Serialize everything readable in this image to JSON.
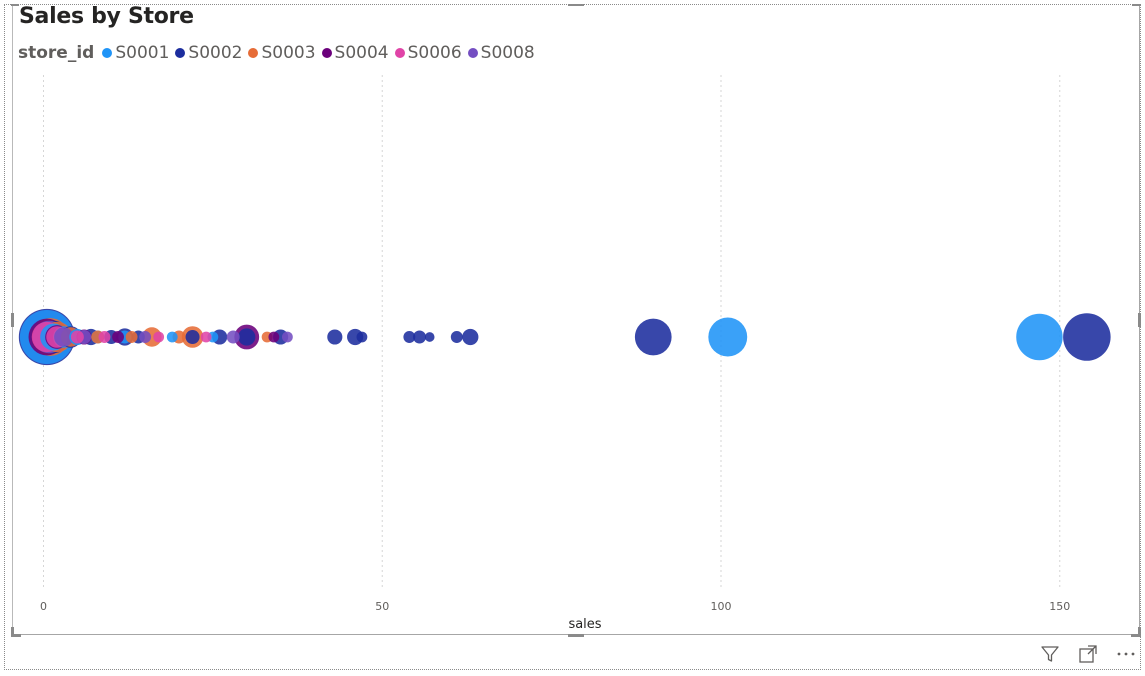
{
  "title": "Sales by Store",
  "legend": {
    "title": "store_id",
    "items": [
      {
        "label": "S0001",
        "color": "#1f94f7"
      },
      {
        "label": "S0002",
        "color": "#1c2d9e"
      },
      {
        "label": "S0003",
        "color": "#e66c37"
      },
      {
        "label": "S0004",
        "color": "#6b007b"
      },
      {
        "label": "S0006",
        "color": "#e044a7"
      },
      {
        "label": "S0008",
        "color": "#744ec2"
      }
    ]
  },
  "toolbar": {
    "filter_icon": "filter-icon",
    "focus_icon": "focus-mode-icon",
    "more_icon": "more-options-icon"
  },
  "chart_data": {
    "type": "scatter",
    "title": "Sales by Store",
    "xlabel": "sales",
    "ylabel": "",
    "xlim": [
      -0.5,
      162
    ],
    "xticks": [
      0,
      50,
      100,
      150
    ],
    "grid": true,
    "legend_position": "top-left",
    "series": [
      {
        "name": "S0001",
        "color": "#1f94f7",
        "points": [
          [
            0.5,
            5
          ],
          [
            1.5,
            2.5
          ],
          [
            3,
            2
          ],
          [
            5,
            1.5
          ],
          [
            8,
            1.2
          ],
          [
            12,
            1.2
          ],
          [
            19,
            1
          ],
          [
            25,
            1
          ],
          [
            101,
            3.6
          ],
          [
            147,
            4.3
          ]
        ]
      },
      {
        "name": "S0002",
        "color": "#1c2d9e",
        "points": [
          [
            0.5,
            5.2
          ],
          [
            1.5,
            3
          ],
          [
            4,
            2
          ],
          [
            7,
            1.5
          ],
          [
            10,
            1.3
          ],
          [
            12,
            1.6
          ],
          [
            14,
            1.2
          ],
          [
            22,
            1.3
          ],
          [
            26,
            1.4
          ],
          [
            30,
            1.6
          ],
          [
            35,
            1.4
          ],
          [
            43,
            1.4
          ],
          [
            46,
            1.5
          ],
          [
            47,
            1
          ],
          [
            54,
            1.1
          ],
          [
            55.5,
            1.2
          ],
          [
            57,
            0.9
          ],
          [
            61,
            1.1
          ],
          [
            63,
            1.5
          ],
          [
            90,
            3.4
          ],
          [
            154,
            4.4
          ]
        ]
      },
      {
        "name": "S0003",
        "color": "#e66c37",
        "points": [
          [
            1,
            3.5
          ],
          [
            2,
            2.8
          ],
          [
            4,
            1.8
          ],
          [
            8,
            1.2
          ],
          [
            13,
            1.1
          ],
          [
            16,
            1.8
          ],
          [
            20,
            1.2
          ],
          [
            22,
            2
          ],
          [
            33,
            1
          ]
        ]
      },
      {
        "name": "S0004",
        "color": "#6b007b",
        "points": [
          [
            0.5,
            3.4
          ],
          [
            2,
            2.2
          ],
          [
            6,
            1.4
          ],
          [
            11,
            1.1
          ],
          [
            30,
            2.3
          ],
          [
            34,
            1
          ]
        ]
      },
      {
        "name": "S0006",
        "color": "#e044a7",
        "points": [
          [
            0.5,
            2.8
          ],
          [
            2,
            2
          ],
          [
            5,
            1.2
          ],
          [
            9,
            1.1
          ],
          [
            17,
            1
          ],
          [
            24,
            1
          ]
        ]
      },
      {
        "name": "S0008",
        "color": "#744ec2",
        "points": [
          [
            0.8,
            3
          ],
          [
            3,
            1.8
          ],
          [
            6,
            1.3
          ],
          [
            15,
            1.1
          ],
          [
            28,
            1.2
          ],
          [
            36,
            1
          ]
        ]
      }
    ]
  }
}
